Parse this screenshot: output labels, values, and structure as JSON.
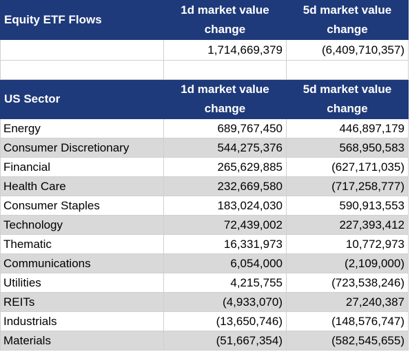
{
  "flows": {
    "title": "Equity ETF Flows",
    "col1": "1d market value change",
    "col2": "5d market value change",
    "total_1d": "1,714,669,379",
    "total_5d": "(6,409,710,357)"
  },
  "sector": {
    "title": "US Sector",
    "col1": "1d market value change",
    "col2": "5d market value change",
    "rows": [
      {
        "name": "Energy",
        "d1": "689,767,450",
        "d5": "446,897,179"
      },
      {
        "name": "Consumer Discretionary",
        "d1": "544,275,376",
        "d5": "568,950,583"
      },
      {
        "name": "Financial",
        "d1": "265,629,885",
        "d5": "(627,171,035)"
      },
      {
        "name": "Health Care",
        "d1": "232,669,580",
        "d5": "(717,258,777)"
      },
      {
        "name": "Consumer Staples",
        "d1": "183,024,030",
        "d5": "590,913,553"
      },
      {
        "name": "Technology",
        "d1": "72,439,002",
        "d5": "227,393,412"
      },
      {
        "name": "Thematic",
        "d1": "16,331,973",
        "d5": "10,772,973"
      },
      {
        "name": "Communications",
        "d1": "6,054,000",
        "d5": "(2,109,000)"
      },
      {
        "name": "Utilities",
        "d1": "4,215,755",
        "d5": "(723,538,246)"
      },
      {
        "name": "REITs",
        "d1": "(4,933,070)",
        "d5": "27,240,387"
      },
      {
        "name": "Industrials",
        "d1": "(13,650,746)",
        "d5": "(148,576,747)"
      },
      {
        "name": "Materials",
        "d1": "(51,667,354)",
        "d5": "(582,545,655)"
      }
    ]
  },
  "colors": {
    "header_bg": "#1f3a7a",
    "header_text": "#ffffff",
    "stripe": "#d9d9d9"
  }
}
